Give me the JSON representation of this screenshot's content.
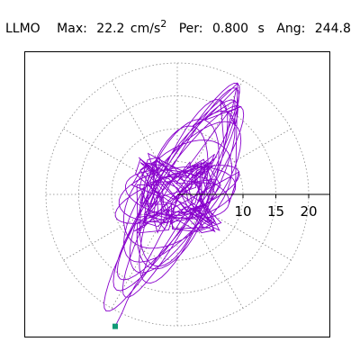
{
  "header": {
    "station": "LLMO",
    "max_label": "Max:",
    "max_value": "22.2",
    "max_unit": "cm/s",
    "max_unit_exp": "2",
    "per_label": "Per:",
    "per_value": "0.800",
    "per_unit": "s",
    "ang_label": "Ang:",
    "ang_value": "244.8"
  },
  "colors": {
    "trace": "#8800cc",
    "marker": "#119977",
    "grid": "#888888",
    "axis": "#000000"
  },
  "chart_data": {
    "type": "polar-hodogram",
    "rings": [
      5,
      10,
      15,
      20
    ],
    "radial_tick_labels": [
      "10",
      "15",
      "20"
    ],
    "max_magnitude": 22.2,
    "angle_deg": 244.8,
    "grid": true
  }
}
